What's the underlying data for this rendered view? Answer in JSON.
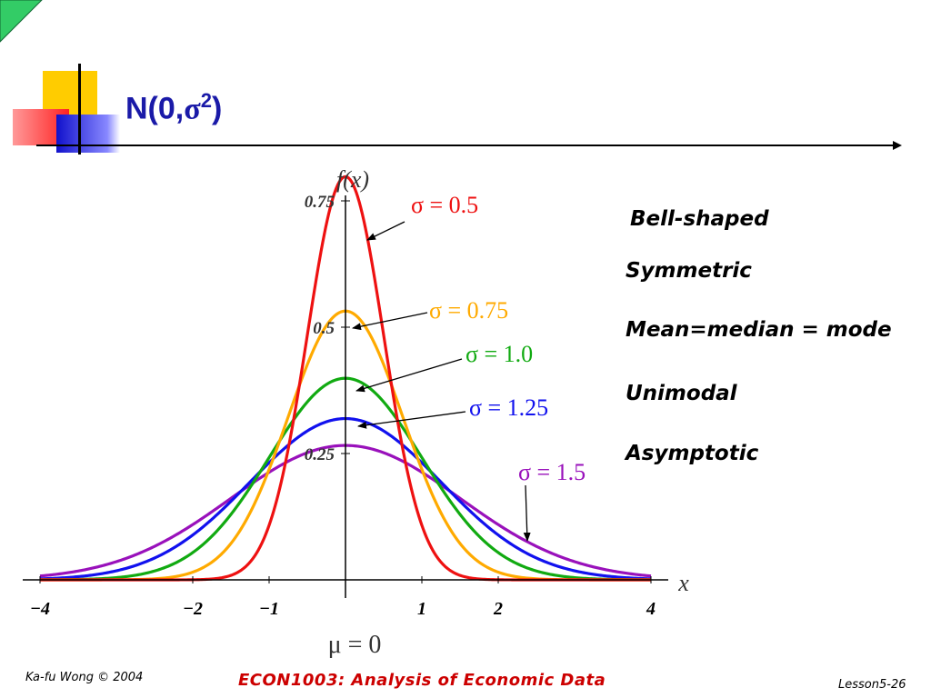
{
  "slide": {
    "title_base": "N(0,",
    "title_sigma": "σ",
    "title_sup": "2",
    "title_close": ")",
    "properties": [
      "Bell-shaped",
      "Symmetric",
      "Mean=median = mode",
      "Unimodal",
      "Asymptotic"
    ]
  },
  "footer": {
    "left": "Ka-fu Wong © 2004",
    "center": "ECON1003: Analysis of Economic Data",
    "right": "Lesson5-26"
  },
  "colors": {
    "title": "#1a1aa8",
    "footer_center": "#cc0000",
    "deco_yellow": "#ffcc00",
    "deco_red": "#ff3333",
    "deco_blue": "#2222cc",
    "corner_green": "#33cc66"
  },
  "chart_data": {
    "type": "line",
    "title": "",
    "ylabel": "f(x)",
    "xlabel": "x",
    "xlim": [
      -4,
      4
    ],
    "ylim": [
      0,
      0.8
    ],
    "x_ticks": [
      {
        "value": -4,
        "label": "−4"
      },
      {
        "value": -2,
        "label": "−2"
      },
      {
        "value": -1,
        "label": "−1"
      },
      {
        "value": 1,
        "label": "1"
      },
      {
        "value": 2,
        "label": "2"
      },
      {
        "value": 4,
        "label": "4"
      }
    ],
    "y_ticks": [
      {
        "value": 0.25,
        "label": "0.25"
      },
      {
        "value": 0.5,
        "label": "0.5"
      },
      {
        "value": 0.75,
        "label": "0.75"
      }
    ],
    "mean_label": "μ = 0",
    "series": [
      {
        "name": "σ = 0.5",
        "sigma": 0.5,
        "color": "#ee1111"
      },
      {
        "name": "σ = 0.75",
        "sigma": 0.75,
        "color": "#ffaa00"
      },
      {
        "name": "σ = 1.0",
        "sigma": 1.0,
        "color": "#11aa11"
      },
      {
        "name": "σ = 1.25",
        "sigma": 1.25,
        "color": "#1111ee"
      },
      {
        "name": "σ = 1.5",
        "sigma": 1.5,
        "color": "#9911bb"
      }
    ]
  }
}
